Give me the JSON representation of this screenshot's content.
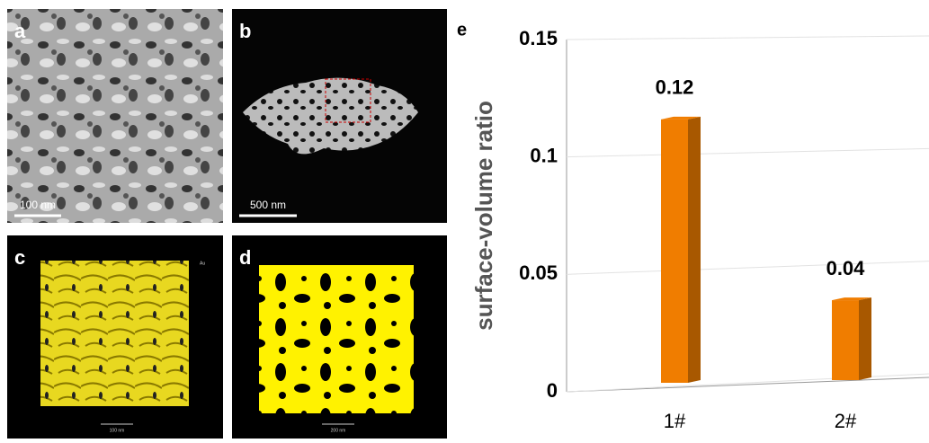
{
  "panels": [
    {
      "label": "a",
      "scale_bar": "100 nm"
    },
    {
      "label": "b",
      "scale_bar": "500 nm"
    },
    {
      "label": "c",
      "scale_bar": "100 nm",
      "tag": "Au"
    },
    {
      "label": "d",
      "scale_bar": "200 nm"
    }
  ],
  "chart_data": {
    "type": "bar3d",
    "label": "e",
    "y_label": "surface-volume ratio",
    "categories": [
      "1#",
      "2#"
    ],
    "values": [
      0.116,
      0.039
    ],
    "value_labels": [
      "0.12",
      "0.04"
    ],
    "color": "#f07d00",
    "ylim": [
      0,
      0.15
    ],
    "yticks": [
      0,
      0.05,
      0.1,
      0.15
    ],
    "grid": true
  }
}
